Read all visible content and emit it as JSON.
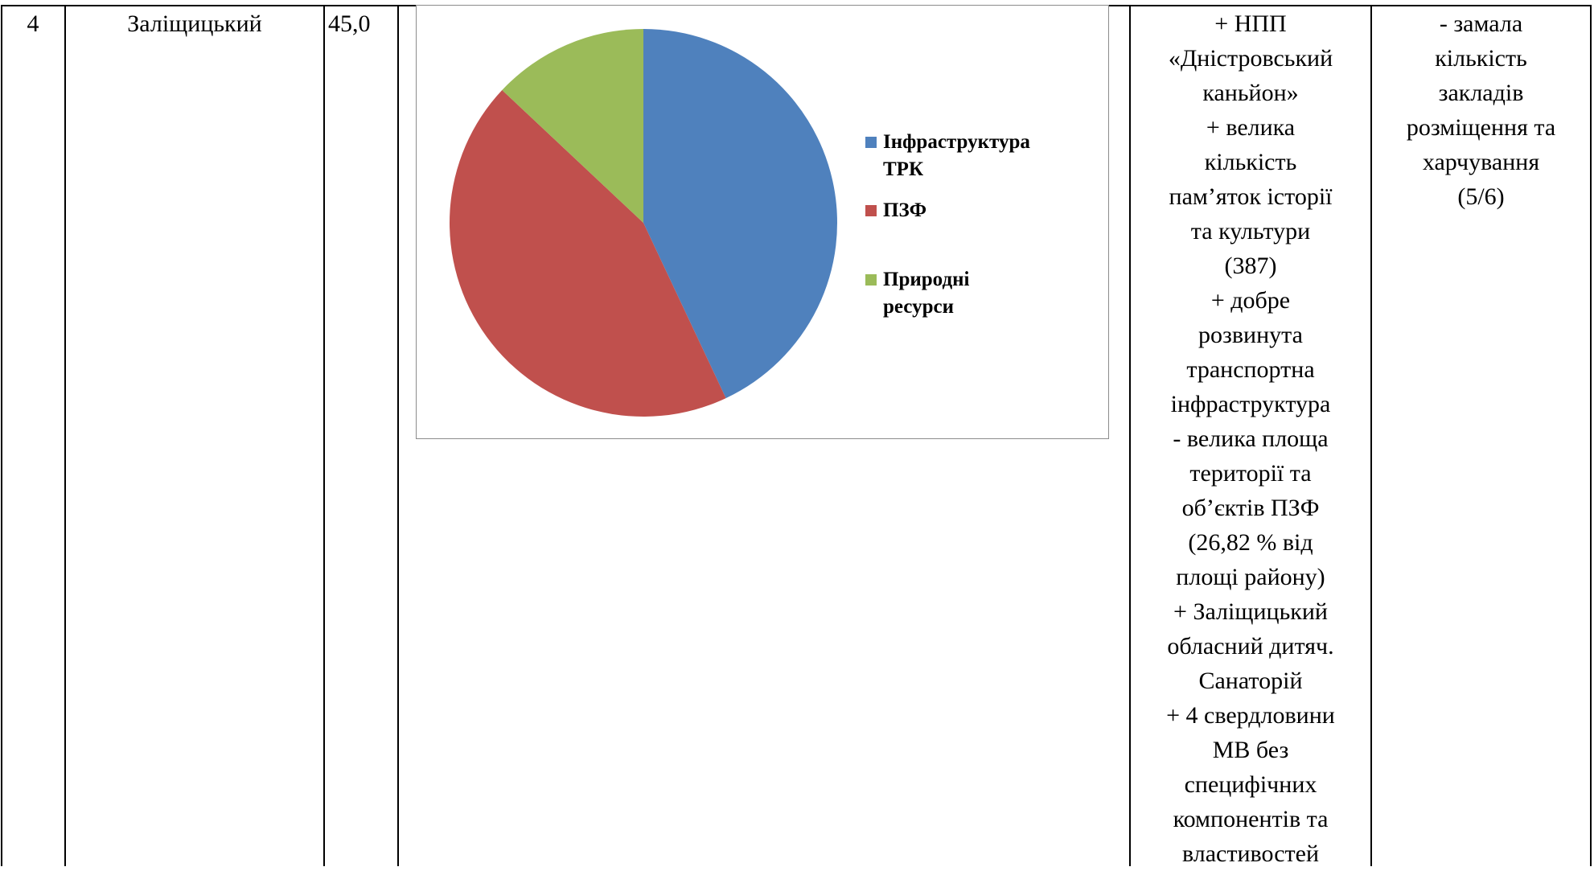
{
  "table": {
    "rows": [
      {
        "cells": [
          {
            "lines": [
              "4"
            ]
          },
          {
            "lines": [
              "Заліщицький"
            ]
          },
          {
            "lines": [
              "45,0"
            ]
          },
          {
            "lines": []
          },
          {
            "lines": [
              "+ НПП",
              "«Дністровський",
              "каньйон»",
              "+ велика",
              "кількість",
              "пам’яток історії",
              "та культури",
              "(387)",
              "+ добре",
              "розвинута",
              "транспортна",
              "інфраструктура",
              "- велика площа",
              "території та",
              "об’єктів ПЗФ",
              "(26,82 % від",
              "площі району)",
              "+ Заліщицький",
              "обласний дитяч.",
              "Санаторій",
              "+ 4 свердловини",
              "МВ без",
              "специфічних",
              "компонентів та",
              "властивостей"
            ]
          },
          {
            "lines": [
              "- замала",
              "кількість",
              "закладів",
              "розміщення та",
              "харчування",
              "(5/6)"
            ]
          }
        ]
      }
    ]
  },
  "chart_data": {
    "type": "pie",
    "categories": [
      "Інфраструктура ТРК",
      "ПЗФ",
      "Природні ресурси"
    ],
    "values": [
      43,
      44,
      13
    ],
    "colors": [
      "#4f81bd",
      "#c0504d",
      "#9bbb59"
    ]
  }
}
